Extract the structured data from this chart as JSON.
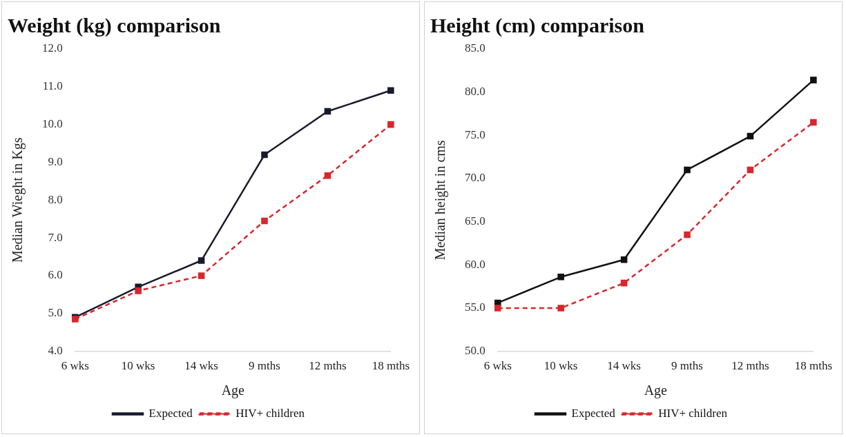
{
  "chart_data": [
    {
      "type": "line",
      "title": "Weight (kg) comparison",
      "xlabel": "Age",
      "ylabel": "Median Wieght in Kgs",
      "categories": [
        "6 wks",
        "10 wks",
        "14 wks",
        "9 mths",
        "12 mths",
        "18 mths"
      ],
      "series": [
        {
          "name": "Expected",
          "color": "#1a1a2e",
          "line_style": "solid",
          "values": [
            4.9,
            5.7,
            6.4,
            9.2,
            10.35,
            10.9
          ]
        },
        {
          "name": "HIV+ children",
          "color": "#d9262c",
          "line_style": "dashed",
          "values": [
            4.85,
            5.6,
            6.0,
            7.45,
            8.65,
            10.0
          ]
        }
      ],
      "ylim": [
        4,
        12
      ],
      "yticks": [
        {
          "value": 4,
          "label": "4.0"
        },
        {
          "value": 5,
          "label": "5.0"
        },
        {
          "value": 6,
          "label": "6.0"
        },
        {
          "value": 7,
          "label": "7.0"
        },
        {
          "value": 8,
          "label": "8.0"
        },
        {
          "value": 9,
          "label": "9.0"
        },
        {
          "value": 10,
          "label": "10.0"
        },
        {
          "value": 11,
          "label": "11.0"
        },
        {
          "value": 12,
          "label": "12.0"
        }
      ],
      "grid": false,
      "legend": "bottom",
      "marker": "square"
    },
    {
      "type": "line",
      "title": "Height (cm) comparison",
      "xlabel": "Age",
      "ylabel": "Median height in cms",
      "categories": [
        "6 wks",
        "10 wks",
        "14 wks",
        "9 mths",
        "12 mths",
        "18 mths"
      ],
      "series": [
        {
          "name": "Expected",
          "color": "#111111",
          "line_style": "solid",
          "values": [
            55.6,
            58.6,
            60.6,
            71.0,
            74.9,
            81.4
          ]
        },
        {
          "name": "HIV+ children",
          "color": "#d9262c",
          "line_style": "dashed",
          "values": [
            55.0,
            55.0,
            57.9,
            63.5,
            71.0,
            76.5
          ]
        }
      ],
      "ylim": [
        50,
        85
      ],
      "yticks": [
        {
          "value": 50,
          "label": "50.0"
        },
        {
          "value": 55,
          "label": "55.0"
        },
        {
          "value": 60,
          "label": "60.0"
        },
        {
          "value": 65,
          "label": "65.0"
        },
        {
          "value": 70,
          "label": "70.0"
        },
        {
          "value": 75,
          "label": "75.0"
        },
        {
          "value": 80,
          "label": "80.0"
        },
        {
          "value": 85,
          "label": "85.0"
        }
      ],
      "grid": false,
      "legend": "bottom",
      "marker": "square"
    }
  ]
}
